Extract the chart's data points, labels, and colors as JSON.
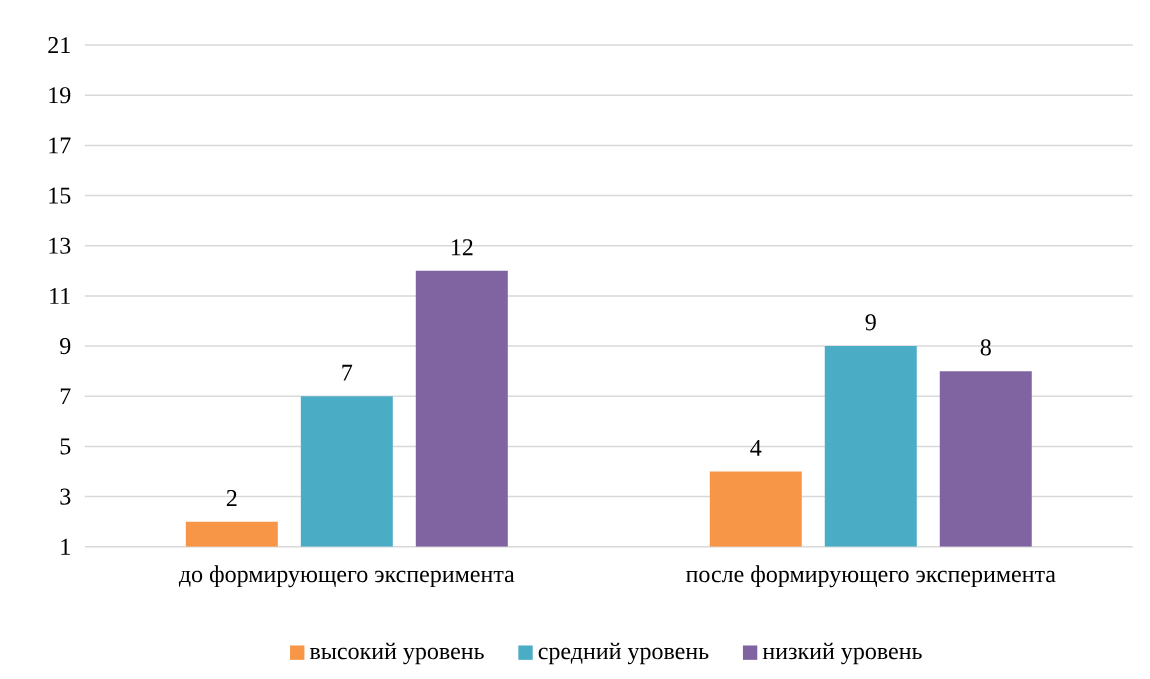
{
  "chart_data": {
    "type": "bar",
    "categories": [
      "до формирующего эксперимента",
      "после формирующего эксперимента"
    ],
    "series": [
      {
        "name": "высокий уровень",
        "color": "#f79646",
        "values": [
          2,
          4
        ]
      },
      {
        "name": "средний уровень",
        "color": "#4bacc6",
        "values": [
          7,
          9
        ]
      },
      {
        "name": "низкий уровень",
        "color": "#8064a2",
        "values": [
          12,
          8
        ]
      }
    ],
    "ylim": [
      1,
      21
    ],
    "yticks": [
      1,
      3,
      5,
      7,
      9,
      11,
      13,
      15,
      17,
      19,
      21
    ],
    "grid": "y",
    "legend": "bottom",
    "data_labels": true
  }
}
